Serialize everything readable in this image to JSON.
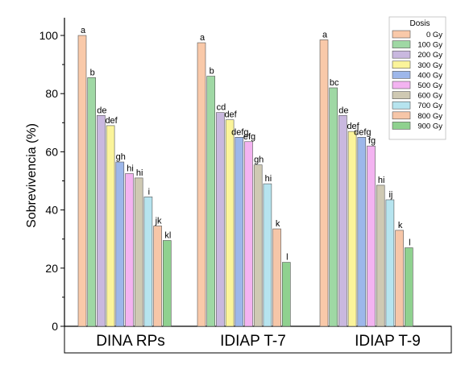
{
  "chart_data": {
    "type": "bar",
    "ylabel": "Sobrevivencia (%)",
    "xlabel": "",
    "ylim": [
      0,
      100
    ],
    "yticks": [
      "0",
      "20",
      "40",
      "60",
      "80",
      "100"
    ],
    "ytick_values": [
      0,
      20,
      40,
      60,
      80,
      100
    ],
    "categories": [
      "DINA RPs",
      "IDIAP T-7",
      "IDIAP T-9"
    ],
    "legend_title": "Dosis",
    "legend_position": "top-right",
    "series": [
      {
        "name": "0   Gy",
        "color": "#f9c9a9",
        "values": [
          100,
          97.5,
          98.5
        ],
        "labels": [
          "a",
          "a",
          "a"
        ]
      },
      {
        "name": "100 Gy",
        "color": "#9fd8a4",
        "values": [
          85.5,
          86,
          82
        ],
        "labels": [
          "b",
          "b",
          "bc"
        ]
      },
      {
        "name": "200 Gy",
        "color": "#c9b8df",
        "values": [
          72.5,
          73.5,
          72.5
        ],
        "labels": [
          "de",
          "cd",
          "de"
        ]
      },
      {
        "name": "300 Gy",
        "color": "#fbf49a",
        "values": [
          69,
          71,
          67
        ],
        "labels": [
          "def",
          "def",
          "def"
        ]
      },
      {
        "name": "400 Gy",
        "color": "#9db7ea",
        "values": [
          56.5,
          65,
          65
        ],
        "labels": [
          "gh",
          "defg",
          "defg"
        ]
      },
      {
        "name": "500 Gy",
        "color": "#f3b3f1",
        "values": [
          52.5,
          63.5,
          62
        ],
        "labels": [
          "hi",
          "efg",
          "fg"
        ]
      },
      {
        "name": "600 Gy",
        "color": "#cfc9b3",
        "values": [
          51,
          55.5,
          48.5
        ],
        "labels": [
          "hi",
          "gh",
          "hi"
        ]
      },
      {
        "name": "700 Gy",
        "color": "#b6e4ef",
        "values": [
          44.5,
          49,
          43.5
        ],
        "labels": [
          "i",
          "hi",
          "ij"
        ]
      },
      {
        "name": "800 Gy",
        "color": "#f6c6a8",
        "values": [
          34.5,
          33.5,
          33
        ],
        "labels": [
          "jk",
          "k",
          "k"
        ]
      },
      {
        "name": "900 Gy",
        "color": "#8fd18f",
        "values": [
          29.5,
          22,
          27
        ],
        "labels": [
          "kl",
          "l",
          "l"
        ]
      }
    ],
    "grid": false
  }
}
